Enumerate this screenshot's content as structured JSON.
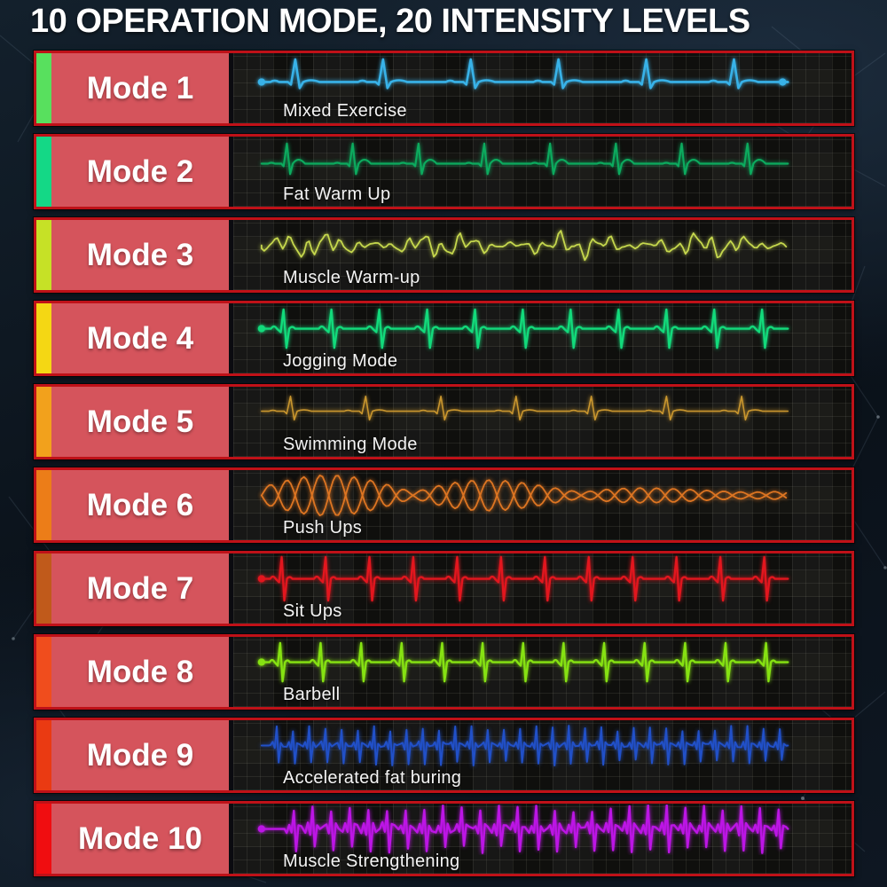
{
  "title": "10 OPERATION MODE, 20 INTENSITY LEVELS",
  "colors": {
    "row_border": "#bf1118",
    "label_bg": "#d5545c",
    "background": "#0b131c",
    "text": "#ffffff"
  },
  "modes": [
    {
      "label": "Mode 1",
      "name": "Mixed Exercise",
      "bar_color": "#58e05e",
      "wave_color": "#38b2e8",
      "wave": {
        "type": "ecg",
        "beats": 6,
        "up": 26,
        "down": 7,
        "pw": 3,
        "tw": 4,
        "sw": 2.6,
        "base": 32,
        "dot_start": true,
        "dot_end": true
      }
    },
    {
      "label": "Mode 2",
      "name": "Fat Warm Up",
      "bar_color": "#14d886",
      "wave_color": "#0caa5e",
      "wave": {
        "type": "ecg",
        "beats": 8,
        "up": 23,
        "down": 12,
        "pw": 2,
        "tw": 9,
        "sw": 2.2,
        "base": 30
      }
    },
    {
      "label": "Mode 3",
      "name": "Muscle Warm-up",
      "bar_color": "#c6e126",
      "wave_color": "#c5d74d",
      "wave": {
        "type": "wiggle",
        "amp": 15,
        "sw": 1.8,
        "base": 28
      }
    },
    {
      "label": "Mode 4",
      "name": "Jogging Mode",
      "bar_color": "#f4d714",
      "wave_color": "#12da7b",
      "wave": {
        "type": "ecg-sym",
        "beats": 11,
        "up": 22,
        "down": 22,
        "sw": 2.4,
        "base": 28,
        "dot_start": true
      }
    },
    {
      "label": "Mode 5",
      "name": "Swimming Mode",
      "bar_color": "#f2a11c",
      "wave_color": "#c9962e",
      "wave": {
        "type": "ecg",
        "beats": 7,
        "up": 17,
        "down": 10,
        "pw": 2,
        "tw": 3,
        "sw": 1.6,
        "base": 27
      }
    },
    {
      "label": "Mode 6",
      "name": "Push Ups",
      "bar_color": "#ec7d18",
      "wave_color": "#dd7522",
      "wave": {
        "type": "spindle",
        "amp": 20,
        "sw": 1.8,
        "base": 28
      }
    },
    {
      "label": "Mode 7",
      "name": "Sit Ups",
      "bar_color": "#c05a1b",
      "wave_color": "#e2161e",
      "wave": {
        "type": "ecg-sym",
        "beats": 12,
        "up": 25,
        "down": 25,
        "sw": 2.4,
        "base": 28,
        "dot_start": true
      }
    },
    {
      "label": "Mode 8",
      "name": "Barbell",
      "bar_color": "#f04d1d",
      "wave_color": "#86e212",
      "wave": {
        "type": "ecg-sym",
        "beats": 13,
        "up": 22,
        "down": 22,
        "sw": 2.4,
        "base": 28,
        "dot_start": true
      }
    },
    {
      "label": "Mode 9",
      "name": "Accelerated fat buring",
      "bar_color": "#ea3a12",
      "wave_color": "#2150c8",
      "wave": {
        "type": "burst",
        "beats": 32,
        "up": 20,
        "down": 20,
        "noise": 2,
        "sw": 2,
        "base": 28,
        "lead": 8
      }
    },
    {
      "label": "Mode 10",
      "name": "Muscle Strengthening",
      "bar_color": "#f00d10",
      "wave_color": "#bc15e5",
      "wave": {
        "type": "burst",
        "beats": 27,
        "up": 24,
        "down": 24,
        "noise": 5,
        "sw": 2.4,
        "base": 28,
        "lead": 26,
        "dot_start": true
      }
    }
  ]
}
